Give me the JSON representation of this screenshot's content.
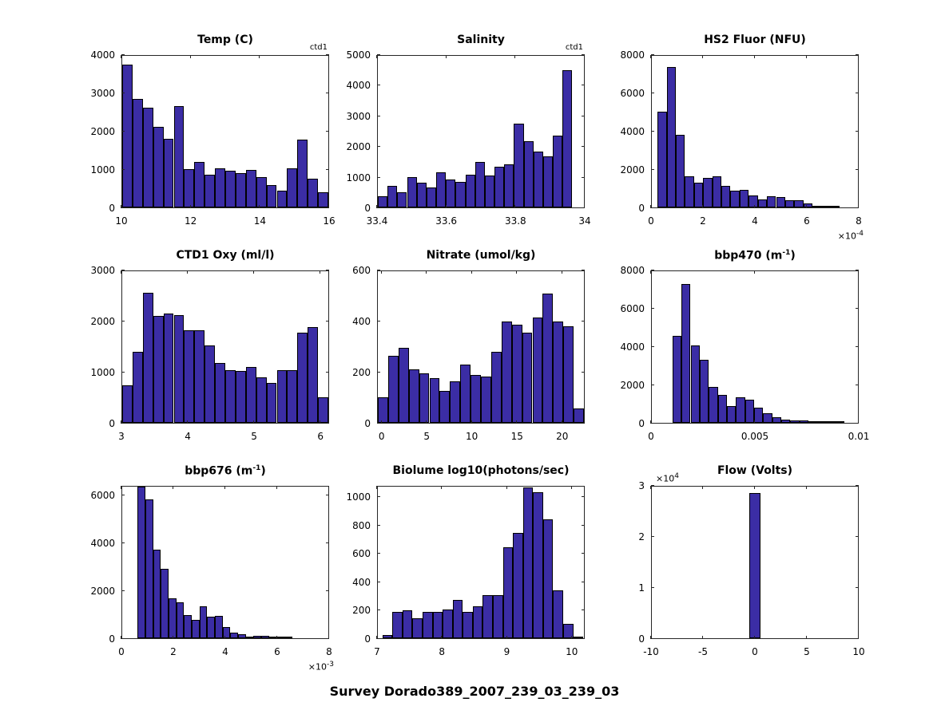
{
  "figure": {
    "suptitle": "Survey Dorado389_2007_239_03_239_03",
    "bar_fill": "#3B2DA5",
    "bar_edge": "#000000",
    "axis_color": "#262626"
  },
  "chart_data": [
    {
      "type": "histogram",
      "name": "temp",
      "title": "Temp (C)",
      "annotation": "ctd1",
      "xlim": [
        10,
        16
      ],
      "ylim": [
        0,
        4000
      ],
      "bins": {
        "start": 10.0,
        "width": 0.3
      },
      "values": [
        3770,
        2860,
        2630,
        2130,
        1820,
        2670,
        1010,
        1210,
        870,
        1030,
        970,
        910,
        980,
        790,
        580,
        440,
        1040,
        1800,
        760,
        410
      ],
      "xticks": [
        {
          "v": 10,
          "l": "10"
        },
        {
          "v": 12,
          "l": "12"
        },
        {
          "v": 14,
          "l": "14"
        },
        {
          "v": 16,
          "l": "16"
        }
      ],
      "yticks": [
        {
          "v": 0,
          "l": "0"
        },
        {
          "v": 1000,
          "l": "1000"
        },
        {
          "v": 2000,
          "l": "2000"
        },
        {
          "v": 3000,
          "l": "3000"
        },
        {
          "v": 4000,
          "l": "4000"
        }
      ]
    },
    {
      "type": "histogram",
      "name": "salinity",
      "title": "Salinity",
      "annotation": "ctd1",
      "xlim": [
        33.4,
        34
      ],
      "ylim": [
        0,
        5000
      ],
      "bins": {
        "start": 33.4,
        "width": 0.0283
      },
      "values": [
        380,
        700,
        510,
        990,
        820,
        670,
        1170,
        910,
        830,
        1070,
        1500,
        1050,
        1330,
        1430,
        2770,
        2180,
        1830,
        1690,
        2370,
        4530
      ],
      "xticks": [
        {
          "v": 33.4,
          "l": "33.4"
        },
        {
          "v": 33.6,
          "l": "33.6"
        },
        {
          "v": 33.8,
          "l": "33.8"
        },
        {
          "v": 34,
          "l": "34"
        }
      ],
      "yticks": [
        {
          "v": 0,
          "l": "0"
        },
        {
          "v": 1000,
          "l": "1000"
        },
        {
          "v": 2000,
          "l": "2000"
        },
        {
          "v": 3000,
          "l": "3000"
        },
        {
          "v": 4000,
          "l": "4000"
        },
        {
          "v": 5000,
          "l": "5000"
        }
      ]
    },
    {
      "type": "histogram",
      "name": "hs2-fluor",
      "title": "HS2 Fluor (NFU)",
      "annotation": "",
      "x_exponent": "×10^{-4}",
      "xlim": [
        0,
        0.0008
      ],
      "ylim": [
        0,
        8000
      ],
      "bins": {
        "start": 2.2e-05,
        "width": 3.54e-05
      },
      "values": [
        5050,
        7400,
        3820,
        1650,
        1290,
        1570,
        1650,
        1130,
        870,
        940,
        640,
        430,
        600,
        530,
        390,
        390,
        200,
        40,
        30,
        15
      ],
      "xticks": [
        {
          "v": 0,
          "l": "0"
        },
        {
          "v": 0.0002,
          "l": "2"
        },
        {
          "v": 0.0004,
          "l": "4"
        },
        {
          "v": 0.0006,
          "l": "6"
        },
        {
          "v": 0.0008,
          "l": "8"
        }
      ],
      "yticks": [
        {
          "v": 0,
          "l": "0"
        },
        {
          "v": 2000,
          "l": "2000"
        },
        {
          "v": 4000,
          "l": "4000"
        },
        {
          "v": 6000,
          "l": "6000"
        },
        {
          "v": 8000,
          "l": "8000"
        }
      ]
    },
    {
      "type": "histogram",
      "name": "ctd1-oxy",
      "title": "CTD1 Oxy (ml/l)",
      "annotation": "",
      "xlim": [
        3,
        6.13
      ],
      "ylim": [
        0,
        3000
      ],
      "bins": {
        "start": 3.0,
        "width": 0.1565
      },
      "values": [
        750,
        1400,
        2580,
        2120,
        2160,
        2130,
        1830,
        1830,
        1530,
        1180,
        1040,
        1030,
        1110,
        900,
        790,
        1040,
        1040,
        1780,
        1900,
        500
      ],
      "xticks": [
        {
          "v": 3,
          "l": "3"
        },
        {
          "v": 4,
          "l": "4"
        },
        {
          "v": 5,
          "l": "5"
        },
        {
          "v": 6,
          "l": "6"
        }
      ],
      "yticks": [
        {
          "v": 0,
          "l": "0"
        },
        {
          "v": 1000,
          "l": "1000"
        },
        {
          "v": 2000,
          "l": "2000"
        },
        {
          "v": 3000,
          "l": "3000"
        }
      ]
    },
    {
      "type": "histogram",
      "name": "nitrate",
      "title": "Nitrate (umol/kg)",
      "annotation": "",
      "xlim": [
        -0.5,
        22.5
      ],
      "ylim": [
        0,
        600
      ],
      "bins": {
        "start": -0.5,
        "width": 1.15
      },
      "values": [
        100,
        265,
        298,
        212,
        196,
        178,
        125,
        165,
        232,
        190,
        183,
        280,
        400,
        388,
        357,
        417,
        512,
        400,
        382,
        58
      ],
      "xticks": [
        {
          "v": 0,
          "l": "0"
        },
        {
          "v": 5,
          "l": "5"
        },
        {
          "v": 10,
          "l": "10"
        },
        {
          "v": 15,
          "l": "15"
        },
        {
          "v": 20,
          "l": "20"
        }
      ],
      "yticks": [
        {
          "v": 0,
          "l": "0"
        },
        {
          "v": 200,
          "l": "200"
        },
        {
          "v": 400,
          "l": "400"
        },
        {
          "v": 600,
          "l": "600"
        }
      ]
    },
    {
      "type": "histogram",
      "name": "bbp470",
      "title": "bbp470 (m^{-1})",
      "annotation": "",
      "xlim": [
        0,
        0.01
      ],
      "ylim": [
        0,
        8000
      ],
      "bins": {
        "start": 0.001,
        "width": 0.00044
      },
      "values": [
        4600,
        7340,
        4100,
        3340,
        1900,
        1480,
        870,
        1330,
        1240,
        810,
        490,
        280,
        180,
        110,
        110,
        70,
        90,
        30,
        20
      ],
      "xticks": [
        {
          "v": 0,
          "l": "0"
        },
        {
          "v": 0.005,
          "l": "0.005"
        },
        {
          "v": 0.01,
          "l": "0.01"
        }
      ],
      "yticks": [
        {
          "v": 0,
          "l": "0"
        },
        {
          "v": 2000,
          "l": "2000"
        },
        {
          "v": 4000,
          "l": "4000"
        },
        {
          "v": 6000,
          "l": "6000"
        },
        {
          "v": 8000,
          "l": "8000"
        }
      ]
    },
    {
      "type": "histogram",
      "name": "bbp676",
      "title": "bbp676 (m^{-1})",
      "annotation": "",
      "x_exponent": "×10^{-3}",
      "xlim": [
        0,
        0.008
      ],
      "ylim": [
        0,
        6400
      ],
      "bins": {
        "start": 0.0006,
        "width": 0.0003
      },
      "values": [
        6400,
        5860,
        3740,
        2930,
        1680,
        1530,
        970,
        780,
        1350,
        910,
        960,
        480,
        240,
        170,
        80,
        90,
        90,
        80,
        60,
        30
      ],
      "xticks": [
        {
          "v": 0,
          "l": "0"
        },
        {
          "v": 0.002,
          "l": "2"
        },
        {
          "v": 0.004,
          "l": "4"
        },
        {
          "v": 0.006,
          "l": "6"
        },
        {
          "v": 0.008,
          "l": "8"
        }
      ],
      "yticks": [
        {
          "v": 0,
          "l": "0"
        },
        {
          "v": 2000,
          "l": "2000"
        },
        {
          "v": 4000,
          "l": "4000"
        },
        {
          "v": 6000,
          "l": "6000"
        }
      ]
    },
    {
      "type": "histogram",
      "name": "biolume",
      "title": "Biolume log10(photons/sec)",
      "annotation": "",
      "xlim": [
        7,
        10.2
      ],
      "ylim": [
        0,
        1080
      ],
      "bins": {
        "start": 7.07,
        "width": 0.156
      },
      "values": [
        25,
        185,
        200,
        140,
        190,
        190,
        205,
        275,
        185,
        230,
        307,
        308,
        650,
        753,
        1075,
        1040,
        845,
        340,
        100,
        12
      ],
      "xticks": [
        {
          "v": 7,
          "l": "7"
        },
        {
          "v": 8,
          "l": "8"
        },
        {
          "v": 9,
          "l": "9"
        },
        {
          "v": 10,
          "l": "10"
        }
      ],
      "yticks": [
        {
          "v": 0,
          "l": "0"
        },
        {
          "v": 200,
          "l": "200"
        },
        {
          "v": 400,
          "l": "400"
        },
        {
          "v": 600,
          "l": "600"
        },
        {
          "v": 800,
          "l": "800"
        },
        {
          "v": 1000,
          "l": "1000"
        }
      ]
    },
    {
      "type": "histogram",
      "name": "flow",
      "title": "Flow (Volts)",
      "annotation": "",
      "y_exponent": "×10^{4}",
      "xlim": [
        -10,
        10
      ],
      "ylim": [
        0,
        30000
      ],
      "bins": {
        "start": -0.55,
        "width": 1.1
      },
      "values": [
        28800
      ],
      "xticks": [
        {
          "v": -10,
          "l": "-10"
        },
        {
          "v": -5,
          "l": "-5"
        },
        {
          "v": 0,
          "l": "0"
        },
        {
          "v": 5,
          "l": "5"
        },
        {
          "v": 10,
          "l": "10"
        }
      ],
      "yticks": [
        {
          "v": 0,
          "l": "0"
        },
        {
          "v": 10000,
          "l": "1"
        },
        {
          "v": 20000,
          "l": "2"
        },
        {
          "v": 30000,
          "l": "3"
        }
      ]
    }
  ]
}
